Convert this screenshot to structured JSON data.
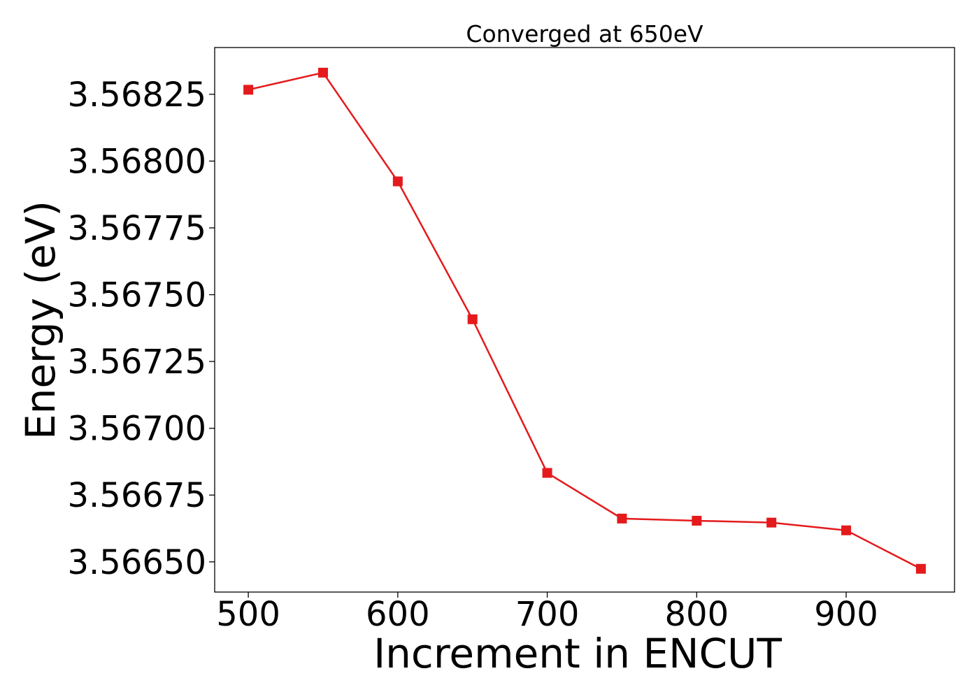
{
  "chart_data": {
    "type": "line",
    "title": "Converged at 650eV",
    "xlabel": "Increment in ENCUT",
    "ylabel": "Energy (eV)",
    "xlim": [
      477.5,
      972.5
    ],
    "ylim": [
      3.566387,
      3.568425
    ],
    "x_ticks": [
      500,
      600,
      700,
      800,
      900
    ],
    "x_tick_labels": [
      "500",
      "600",
      "700",
      "800",
      "900"
    ],
    "y_ticks": [
      3.5665,
      3.56675,
      3.567,
      3.56725,
      3.5675,
      3.56775,
      3.568,
      3.56825
    ],
    "y_tick_labels": [
      "3.56650",
      "3.56675",
      "3.56700",
      "3.56725",
      "3.56750",
      "3.56775",
      "3.56800",
      "3.56825"
    ],
    "grid": false,
    "series": [
      {
        "color": "#e41a1c",
        "marker": "square",
        "x": [
          500,
          550,
          600,
          650,
          700,
          750,
          800,
          850,
          900,
          950
        ],
        "y": [
          3.568267,
          3.568331,
          3.567924,
          3.567408,
          3.566833,
          3.566662,
          3.566654,
          3.566647,
          3.566618,
          3.566474
        ]
      }
    ]
  }
}
